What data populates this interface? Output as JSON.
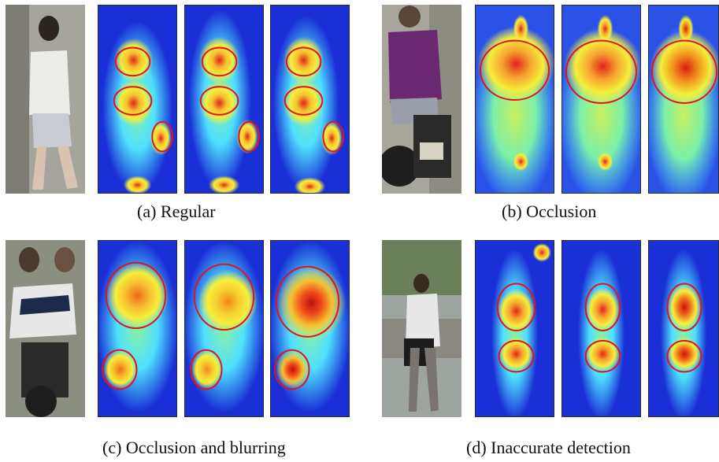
{
  "panels": [
    {
      "caption": "(a) Regular"
    },
    {
      "caption": "(b) Occlusion"
    },
    {
      "caption": "(c) Occlusion and blurring"
    },
    {
      "caption": "(d) Inaccurate detection"
    }
  ],
  "colors": {
    "heat_low": "#1a2fd6",
    "heat_mid": "#4fe0ff",
    "heat_warm": "#f6ee3a",
    "heat_high": "#e8361a",
    "circle": "#e0141e"
  },
  "icons": [
    "person-photo",
    "heatmap"
  ]
}
